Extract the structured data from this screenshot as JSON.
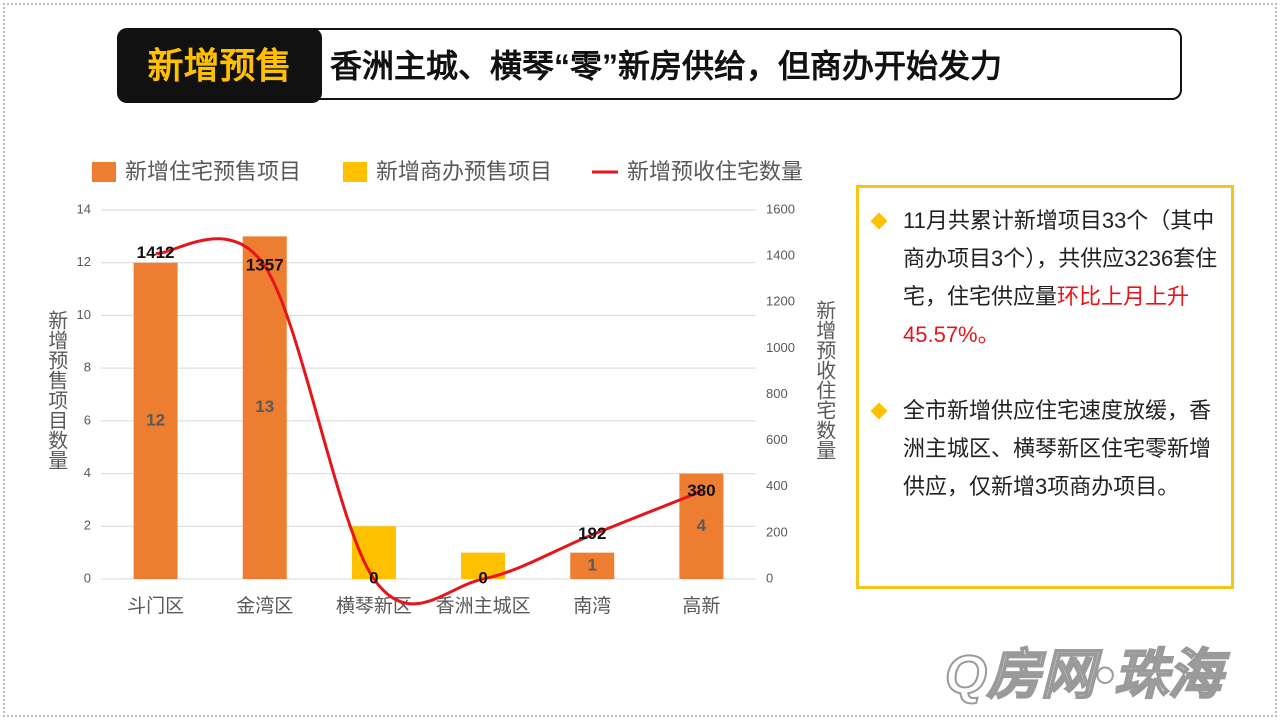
{
  "header": {
    "tag": "新增预售",
    "title": "香洲主城、横琴“零”新房供给，但商办开始发力"
  },
  "chart_data": {
    "type": "combo",
    "categories": [
      "斗门区",
      "金湾区",
      "横琴新区",
      "香洲主城区",
      "南湾",
      "高新"
    ],
    "series": [
      {
        "name": "新增住宅预售项目",
        "type": "bar",
        "color": "#ed7d31",
        "values": [
          12,
          13,
          0,
          0,
          1,
          4
        ]
      },
      {
        "name": "新增商办预售项目",
        "type": "bar",
        "color": "#ffc000",
        "values": [
          0,
          0,
          2,
          1,
          0,
          0
        ]
      },
      {
        "name": "新增预收住宅数量",
        "type": "line",
        "axis": "y2",
        "color": "#e8141b",
        "values": [
          1412,
          1357,
          0,
          0,
          192,
          380
        ]
      }
    ],
    "stacked": true,
    "ylabel": "新增预售项目数量",
    "y2label": "新增预收住宅数量",
    "ylim": [
      0,
      14
    ],
    "yticks": [
      0,
      2,
      4,
      6,
      8,
      10,
      12,
      14
    ],
    "y2lim": [
      0,
      1600
    ],
    "y2ticks": [
      0,
      200,
      400,
      600,
      800,
      1000,
      1200,
      1400,
      1600
    ],
    "grid": true,
    "legend": "top"
  },
  "notes": [
    [
      {
        "text": "11月共累计新增项目33个（其中商办项目3个），共供应3236套住宅，住宅供应量",
        "color": "#222222"
      },
      {
        "text": "环比上月上升45.57%。",
        "color": "#e8141b"
      }
    ],
    [
      {
        "text": "全市新增供应住宅速度放缓，香洲主城区、横琴新区住宅零新增供应，仅新增3项商办项目。",
        "color": "#222222"
      }
    ]
  ],
  "watermark": "Q房网•珠海"
}
